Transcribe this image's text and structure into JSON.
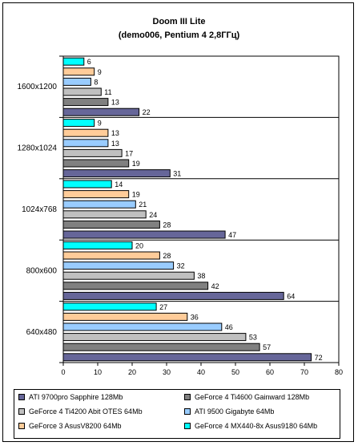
{
  "chart_data": {
    "type": "bar",
    "orientation": "horizontal",
    "title": "Doom III Lite",
    "subtitle": "(demo006, Pentium 4 2,8ГГц)",
    "xlabel": "",
    "ylabel": "",
    "xlim": [
      0,
      80
    ],
    "x_ticks": [
      0,
      10,
      20,
      30,
      40,
      50,
      60,
      70,
      80
    ],
    "grid": false,
    "legend_position": "bottom",
    "categories": [
      "1600x1200",
      "1280x1024",
      "1024x768",
      "800x600",
      "640x480"
    ],
    "series": [
      {
        "name": "GeForce 4 MX440-8x Asus9180 64Mb",
        "color": "#00ffff",
        "values": [
          6,
          9,
          14,
          20,
          27
        ]
      },
      {
        "name": "GeForce 3 AsusV8200 64Mb",
        "color": "#ffcc99",
        "values": [
          9,
          13,
          19,
          28,
          36
        ]
      },
      {
        "name": "ATI 9500 Gigabyte 64Mb",
        "color": "#99ccff",
        "values": [
          8,
          13,
          21,
          32,
          46
        ]
      },
      {
        "name": "GeForce 4 Ti4200 Abit OTES 64Mb",
        "color": "#c0c0c0",
        "values": [
          11,
          17,
          24,
          38,
          53
        ]
      },
      {
        "name": "GeForce 4 Ti4600 Gainward 128Mb",
        "color": "#808080",
        "values": [
          13,
          19,
          28,
          42,
          57
        ]
      },
      {
        "name": "ATI 9700pro Sapphire 128Mb",
        "color": "#666699",
        "values": [
          22,
          31,
          47,
          64,
          72
        ]
      }
    ],
    "legend_order": [
      "ATI 9700pro Sapphire 128Mb",
      "GeForce 4 Ti4600 Gainward 128Mb",
      "GeForce 4 Ti4200 Abit OTES 64Mb",
      "ATI 9500 Gigabyte 64Mb",
      "GeForce 3 AsusV8200 64Mb",
      "GeForce 4 MX440-8x Asus9180 64Mb"
    ],
    "plot_background": "#ffffff"
  }
}
